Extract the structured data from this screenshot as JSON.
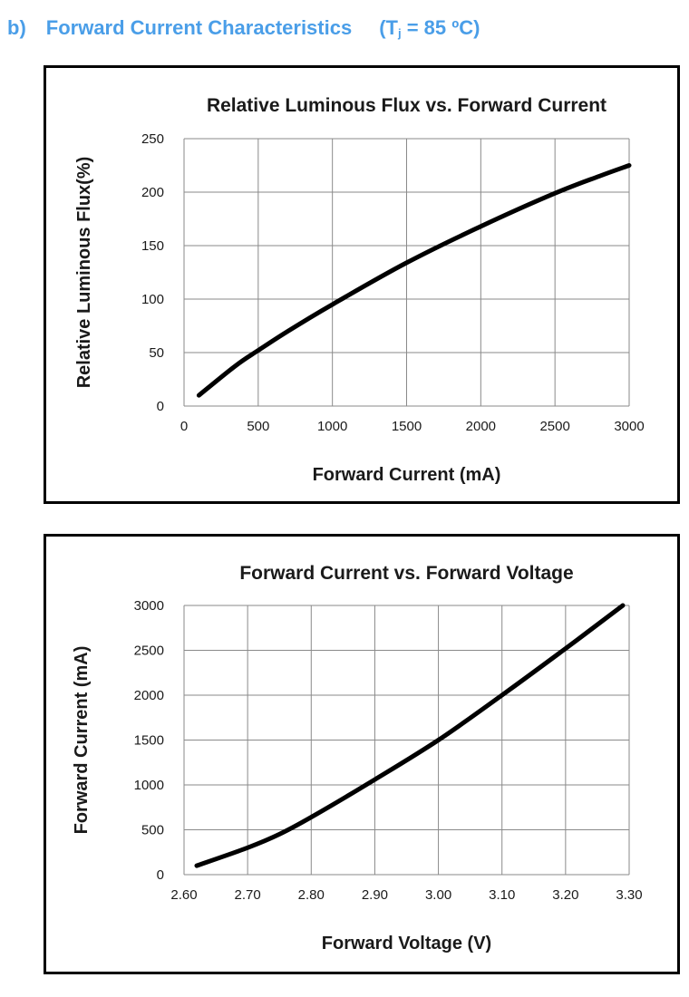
{
  "header": {
    "prefix": "b)",
    "title": "Forward Current Characteristics",
    "condition_open": "(T",
    "condition_sub": "j",
    "condition_close": " = 85 ºC)"
  },
  "chart_data": [
    {
      "type": "line",
      "title": "Relative Luminous Flux vs. Forward Current",
      "xlabel": "Forward Current (mA)",
      "ylabel": "Relative Luminous Flux(%)",
      "xlim": [
        0,
        3000
      ],
      "ylim": [
        0,
        250
      ],
      "x_ticks": [
        "0",
        "500",
        "1000",
        "1500",
        "2000",
        "2500",
        "3000"
      ],
      "y_ticks": [
        "0",
        "50",
        "100",
        "150",
        "200",
        "250"
      ],
      "grid": true,
      "series": [
        {
          "x": [
            100,
            350,
            500,
            700,
            1000,
            1500,
            2000,
            2500,
            2800,
            3000
          ],
          "y": [
            10,
            38,
            52,
            70,
            95,
            134,
            168,
            199,
            215,
            225
          ]
        }
      ]
    },
    {
      "type": "line",
      "title": "Forward Current vs. Forward Voltage",
      "xlabel": "Forward Voltage (V)",
      "ylabel": "Forward Current (mA)",
      "xlim": [
        2.6,
        3.3
      ],
      "ylim": [
        0,
        3000
      ],
      "x_ticks": [
        "2.60",
        "2.70",
        "2.80",
        "2.90",
        "3.00",
        "3.10",
        "3.20",
        "3.30"
      ],
      "y_ticks": [
        "0",
        "500",
        "1000",
        "1500",
        "2000",
        "2500",
        "3000"
      ],
      "grid": true,
      "series": [
        {
          "x": [
            2.62,
            2.7,
            2.75,
            2.8,
            2.9,
            3.0,
            3.1,
            3.2,
            3.29
          ],
          "y": [
            100,
            300,
            450,
            640,
            1060,
            1500,
            2000,
            2520,
            3000
          ]
        }
      ]
    }
  ]
}
